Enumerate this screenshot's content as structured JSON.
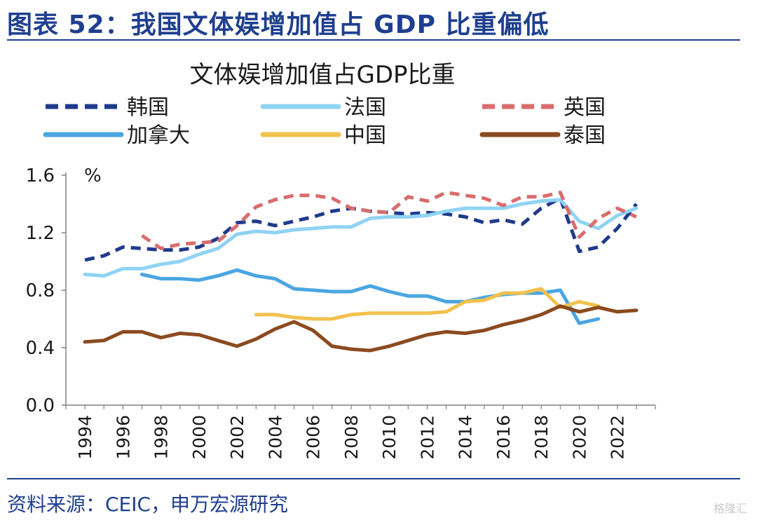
{
  "figure_title": "图表 52：我国文体娱增加值占 GDP 比重偏低",
  "source_text": "资料来源：CEIC，申万宏源研究",
  "watermark": "格隆汇",
  "chart_data": {
    "type": "line",
    "title": "文体娱增加值占GDP比重",
    "ylabel": "%",
    "ylim": [
      0,
      1.6
    ],
    "yticks": [
      "0.0",
      "0.4",
      "0.8",
      "1.2",
      "1.6"
    ],
    "xlim": [
      1993,
      2024
    ],
    "xticks": [
      "1994",
      "1996",
      "1998",
      "2000",
      "2002",
      "2004",
      "2006",
      "2008",
      "2010",
      "2012",
      "2014",
      "2016",
      "2018",
      "2020",
      "2022"
    ],
    "series": [
      {
        "name": "韩国",
        "color": "#1f3a8c",
        "dash": "14,9",
        "x": [
          1994,
          1995,
          1996,
          1997,
          1998,
          1999,
          2000,
          2001,
          2002,
          2003,
          2004,
          2005,
          2006,
          2007,
          2008,
          2009,
          2010,
          2011,
          2012,
          2013,
          2014,
          2015,
          2016,
          2017,
          2018,
          2019,
          2020,
          2021,
          2022,
          2023
        ],
        "values": [
          1.01,
          1.04,
          1.1,
          1.09,
          1.08,
          1.08,
          1.1,
          1.16,
          1.27,
          1.28,
          1.25,
          1.28,
          1.31,
          1.35,
          1.37,
          1.35,
          1.34,
          1.33,
          1.34,
          1.33,
          1.31,
          1.27,
          1.29,
          1.26,
          1.37,
          1.44,
          1.07,
          1.1,
          1.23,
          1.4
        ]
      },
      {
        "name": "法国",
        "color": "#8fd3f4",
        "dash": "",
        "x": [
          1994,
          1995,
          1996,
          1997,
          1998,
          1999,
          2000,
          2001,
          2002,
          2003,
          2004,
          2005,
          2006,
          2007,
          2008,
          2009,
          2010,
          2011,
          2012,
          2013,
          2014,
          2015,
          2016,
          2017,
          2018,
          2019,
          2020,
          2021,
          2022,
          2023
        ],
        "values": [
          0.91,
          0.9,
          0.95,
          0.95,
          0.98,
          1.0,
          1.05,
          1.09,
          1.19,
          1.21,
          1.2,
          1.22,
          1.23,
          1.24,
          1.24,
          1.3,
          1.31,
          1.31,
          1.32,
          1.35,
          1.37,
          1.37,
          1.37,
          1.4,
          1.42,
          1.43,
          1.28,
          1.23,
          1.32,
          1.37
        ]
      },
      {
        "name": "英国",
        "color": "#d96d6d",
        "dash": "14,9",
        "x": [
          1997,
          1998,
          1999,
          2000,
          2001,
          2002,
          2003,
          2004,
          2005,
          2006,
          2007,
          2008,
          2009,
          2010,
          2011,
          2012,
          2013,
          2014,
          2015,
          2016,
          2017,
          2018,
          2019,
          2020,
          2021,
          2022,
          2023
        ],
        "values": [
          1.18,
          1.09,
          1.12,
          1.13,
          1.14,
          1.25,
          1.38,
          1.43,
          1.46,
          1.46,
          1.44,
          1.37,
          1.35,
          1.34,
          1.45,
          1.42,
          1.48,
          1.46,
          1.44,
          1.39,
          1.45,
          1.45,
          1.48,
          1.17,
          1.3,
          1.37,
          1.31
        ]
      },
      {
        "name": "加拿大",
        "color": "#4aa6e2",
        "dash": "",
        "x": [
          1997,
          1998,
          1999,
          2000,
          2001,
          2002,
          2003,
          2004,
          2005,
          2006,
          2007,
          2008,
          2009,
          2010,
          2011,
          2012,
          2013,
          2014,
          2015,
          2016,
          2017,
          2018,
          2019,
          2020,
          2021
        ],
        "values": [
          0.91,
          0.88,
          0.88,
          0.87,
          0.9,
          0.94,
          0.9,
          0.88,
          0.81,
          0.8,
          0.79,
          0.79,
          0.83,
          0.79,
          0.76,
          0.76,
          0.72,
          0.72,
          0.75,
          0.77,
          0.78,
          0.78,
          0.8,
          0.57,
          0.6
        ]
      },
      {
        "name": "中国",
        "color": "#f2c14e",
        "dash": "",
        "x": [
          2003,
          2004,
          2005,
          2006,
          2007,
          2008,
          2009,
          2010,
          2011,
          2012,
          2013,
          2014,
          2015,
          2016,
          2017,
          2018,
          2019,
          2020,
          2021
        ],
        "values": [
          0.63,
          0.63,
          0.61,
          0.6,
          0.6,
          0.63,
          0.64,
          0.64,
          0.64,
          0.64,
          0.65,
          0.72,
          0.73,
          0.78,
          0.78,
          0.81,
          0.68,
          0.72,
          0.69
        ]
      },
      {
        "name": "泰国",
        "color": "#8b4a1f",
        "dash": "",
        "x": [
          1994,
          1995,
          1996,
          1997,
          1998,
          1999,
          2000,
          2001,
          2002,
          2003,
          2004,
          2005,
          2006,
          2007,
          2008,
          2009,
          2010,
          2011,
          2012,
          2013,
          2014,
          2015,
          2016,
          2017,
          2018,
          2019,
          2020,
          2021,
          2022,
          2023
        ],
        "values": [
          0.44,
          0.45,
          0.51,
          0.51,
          0.47,
          0.5,
          0.49,
          0.45,
          0.41,
          0.46,
          0.53,
          0.58,
          0.52,
          0.41,
          0.39,
          0.38,
          0.41,
          0.45,
          0.49,
          0.51,
          0.5,
          0.52,
          0.56,
          0.59,
          0.63,
          0.69,
          0.65,
          0.68,
          0.65,
          0.66
        ]
      }
    ]
  }
}
